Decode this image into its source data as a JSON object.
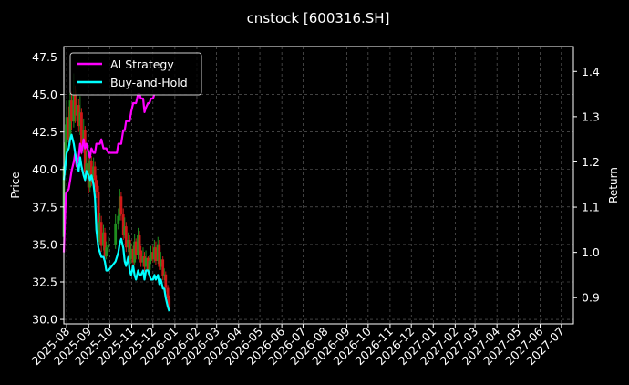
{
  "chart_data": {
    "type": "line",
    "title": "cnstock [600316.SH]",
    "ylabel_left": "Price",
    "ylabel_right": "Return",
    "ylim_left": [
      29.7,
      48.2
    ],
    "ylim_right": [
      0.842,
      1.455
    ],
    "xlim": [
      "2025-07-28",
      "2027-07-18"
    ],
    "grid": true,
    "legend_position": "top-left",
    "left_yticks": [
      "30.0",
      "32.5",
      "35.0",
      "37.5",
      "40.0",
      "42.5",
      "45.0",
      "47.5"
    ],
    "right_yticks": [
      "0.9",
      "1.0",
      "1.1",
      "1.2",
      "1.3",
      "1.4"
    ],
    "xticks": [
      "2025-08",
      "2025-09",
      "2025-10",
      "2025-11",
      "2025-12",
      "2026-01",
      "2026-02",
      "2026-03",
      "2026-04",
      "2026-05",
      "2026-06",
      "2026-07",
      "2026-08",
      "2026-09",
      "2026-10",
      "2026-11",
      "2026-12",
      "2027-01",
      "2027-02",
      "2027-03",
      "2027-04",
      "2027-05",
      "2027-06",
      "2027-07"
    ],
    "price": {
      "dates": [
        "2025-07-28",
        "2025-07-30",
        "2025-08-01",
        "2025-08-04",
        "2025-08-06",
        "2025-08-08",
        "2025-08-11",
        "2025-08-13",
        "2025-08-15",
        "2025-08-18",
        "2025-08-20",
        "2025-08-22",
        "2025-08-25",
        "2025-08-27",
        "2025-08-29",
        "2025-09-01",
        "2025-09-03",
        "2025-09-05",
        "2025-09-08",
        "2025-09-10",
        "2025-09-12",
        "2025-09-15",
        "2025-09-17",
        "2025-09-19",
        "2025-09-22",
        "2025-09-24",
        "2025-09-26",
        "2025-09-29",
        "2025-10-09",
        "2025-10-13",
        "2025-10-15",
        "2025-10-17",
        "2025-10-20",
        "2025-10-22",
        "2025-10-24",
        "2025-10-27",
        "2025-10-29",
        "2025-10-31",
        "2025-11-03",
        "2025-11-05",
        "2025-11-07",
        "2025-11-10",
        "2025-11-12",
        "2025-11-14",
        "2025-11-17",
        "2025-11-19",
        "2025-11-21",
        "2025-11-24",
        "2025-11-26",
        "2025-11-28",
        "2025-12-01",
        "2025-12-03",
        "2025-12-05",
        "2025-12-08",
        "2025-12-10",
        "2025-12-12",
        "2025-12-15",
        "2025-12-17",
        "2025-12-19",
        "2025-12-22",
        "2025-12-24"
      ],
      "open": [
        35.5,
        40.2,
        41.8,
        43.5,
        42.0,
        44.6,
        43.2,
        45.0,
        43.6,
        44.3,
        42.9,
        43.8,
        41.5,
        42.6,
        39.8,
        40.4,
        38.8,
        40.6,
        39.5,
        40.2,
        39.3,
        38.5,
        35.2,
        36.5,
        34.9,
        35.8,
        34.2,
        34.8,
        35.0,
        36.4,
        36.9,
        38.2,
        37.0,
        35.6,
        36.2,
        34.8,
        35.3,
        34.0,
        34.7,
        33.8,
        35.2,
        34.3,
        35.6,
        34.6,
        33.8,
        34.2,
        33.5,
        34.1,
        33.3,
        33.9,
        34.5,
        34.0,
        34.8,
        33.9,
        35.0,
        33.5,
        34.0,
        32.9,
        33.0,
        32.1,
        31.4
      ],
      "close": [
        40.2,
        41.8,
        43.5,
        42.0,
        44.6,
        43.2,
        45.0,
        43.6,
        44.3,
        42.9,
        43.8,
        41.5,
        42.6,
        39.8,
        40.4,
        38.8,
        40.6,
        39.5,
        40.2,
        39.3,
        38.5,
        35.2,
        36.5,
        34.9,
        35.8,
        34.2,
        34.8,
        35.0,
        36.4,
        36.9,
        38.2,
        37.0,
        35.6,
        36.2,
        34.8,
        35.3,
        34.0,
        34.7,
        33.8,
        35.2,
        34.3,
        35.6,
        34.6,
        33.8,
        34.2,
        33.5,
        34.1,
        33.3,
        33.9,
        34.5,
        34.0,
        34.8,
        33.9,
        35.0,
        33.5,
        34.0,
        32.9,
        33.0,
        32.1,
        31.4,
        30.8
      ],
      "high": [
        41.0,
        43.0,
        44.6,
        44.2,
        45.8,
        45.2,
        46.4,
        45.6,
        45.3,
        44.7,
        44.9,
        44.1,
        43.4,
        42.9,
        41.2,
        40.9,
        41.3,
        40.9,
        40.8,
        40.5,
        39.6,
        38.9,
        37.1,
        36.9,
        36.3,
        36.1,
        35.2,
        35.5,
        37.0,
        37.4,
        38.7,
        38.5,
        37.4,
        36.8,
        36.5,
        35.8,
        35.6,
        35.1,
        34.9,
        35.7,
        35.4,
        36.1,
        35.9,
        34.9,
        34.8,
        34.5,
        34.6,
        34.2,
        34.3,
        34.9,
        34.9,
        35.3,
        35.2,
        35.5,
        35.3,
        34.5,
        34.2,
        33.4,
        33.2,
        32.3,
        31.6
      ],
      "low": [
        35.2,
        39.6,
        41.1,
        41.5,
        41.6,
        42.6,
        42.8,
        43.1,
        43.2,
        42.5,
        42.3,
        41.0,
        41.1,
        39.2,
        39.4,
        38.4,
        38.5,
        38.9,
        39.1,
        38.8,
        38.1,
        34.9,
        35.0,
        34.5,
        34.6,
        34.0,
        34.0,
        34.5,
        34.7,
        36.0,
        36.6,
        36.6,
        35.3,
        35.4,
        34.5,
        34.5,
        33.8,
        33.7,
        33.5,
        33.6,
        34.0,
        34.0,
        34.3,
        33.5,
        33.5,
        33.2,
        33.3,
        33.0,
        33.1,
        33.7,
        33.8,
        33.8,
        33.6,
        33.7,
        33.3,
        33.3,
        32.6,
        32.6,
        31.8,
        31.1,
        30.6
      ]
    },
    "series": [
      {
        "name": "AI Strategy",
        "color": "#ff00ff",
        "dates": [
          "2025-07-28",
          "2025-07-31",
          "2025-08-04",
          "2025-08-06",
          "2025-08-08",
          "2025-08-11",
          "2025-08-13",
          "2025-08-15",
          "2025-08-18",
          "2025-08-20",
          "2025-08-22",
          "2025-08-25",
          "2025-08-27",
          "2025-08-29",
          "2025-09-01",
          "2025-09-03",
          "2025-09-05",
          "2025-09-08",
          "2025-09-10",
          "2025-09-12",
          "2025-09-15",
          "2025-09-17",
          "2025-09-19",
          "2025-09-22",
          "2025-09-24",
          "2025-09-26",
          "2025-09-29",
          "2025-10-09",
          "2025-10-11",
          "2025-10-13",
          "2025-10-15",
          "2025-10-17",
          "2025-10-20",
          "2025-10-22",
          "2025-10-24",
          "2025-10-27",
          "2025-10-29",
          "2025-10-31",
          "2025-11-03",
          "2025-11-05",
          "2025-11-07",
          "2025-11-10",
          "2025-11-12",
          "2025-11-14",
          "2025-11-17",
          "2025-11-19",
          "2025-11-21",
          "2025-11-24",
          "2025-11-26",
          "2025-11-28",
          "2025-12-01",
          "2025-12-03"
        ],
        "values": [
          1.0,
          1.13,
          1.14,
          1.16,
          1.18,
          1.2,
          1.22,
          1.19,
          1.21,
          1.24,
          1.22,
          1.25,
          1.23,
          1.24,
          1.22,
          1.21,
          1.23,
          1.22,
          1.22,
          1.24,
          1.24,
          1.24,
          1.25,
          1.23,
          1.23,
          1.23,
          1.22,
          1.22,
          1.22,
          1.24,
          1.24,
          1.24,
          1.27,
          1.27,
          1.29,
          1.29,
          1.29,
          1.31,
          1.33,
          1.33,
          1.33,
          1.35,
          1.35,
          1.34,
          1.34,
          1.31,
          1.32,
          1.33,
          1.33,
          1.34,
          1.34,
          1.35
        ]
      },
      {
        "name": "Buy-and-Hold",
        "color": "#00ffff",
        "dates": [
          "2025-07-28",
          "2025-07-30",
          "2025-08-01",
          "2025-08-04",
          "2025-08-06",
          "2025-08-08",
          "2025-08-11",
          "2025-08-13",
          "2025-08-15",
          "2025-08-18",
          "2025-08-20",
          "2025-08-22",
          "2025-08-25",
          "2025-08-27",
          "2025-08-29",
          "2025-09-01",
          "2025-09-03",
          "2025-09-05",
          "2025-09-08",
          "2025-09-10",
          "2025-09-12",
          "2025-09-15",
          "2025-09-17",
          "2025-09-19",
          "2025-09-22",
          "2025-09-24",
          "2025-09-26",
          "2025-09-29",
          "2025-10-09",
          "2025-10-13",
          "2025-10-15",
          "2025-10-17",
          "2025-10-20",
          "2025-10-22",
          "2025-10-24",
          "2025-10-27",
          "2025-10-29",
          "2025-10-31",
          "2025-11-03",
          "2025-11-05",
          "2025-11-07",
          "2025-11-10",
          "2025-11-12",
          "2025-11-14",
          "2025-11-17",
          "2025-11-19",
          "2025-11-21",
          "2025-11-24",
          "2025-11-26",
          "2025-11-28",
          "2025-12-01",
          "2025-12-03",
          "2025-12-05",
          "2025-12-08",
          "2025-12-10",
          "2025-12-12",
          "2025-12-15",
          "2025-12-17",
          "2025-12-19",
          "2025-12-22",
          "2025-12-24"
        ],
        "values": [
          1.16,
          1.19,
          1.22,
          1.23,
          1.25,
          1.26,
          1.24,
          1.22,
          1.2,
          1.18,
          1.21,
          1.19,
          1.17,
          1.16,
          1.18,
          1.17,
          1.16,
          1.17,
          1.15,
          1.12,
          1.05,
          1.01,
          1.0,
          0.99,
          0.99,
          0.98,
          0.96,
          0.96,
          0.98,
          1.0,
          1.02,
          1.03,
          1.01,
          0.98,
          0.97,
          0.99,
          0.96,
          0.95,
          0.97,
          0.95,
          0.94,
          0.96,
          0.95,
          0.95,
          0.96,
          0.94,
          0.96,
          0.96,
          0.95,
          0.94,
          0.94,
          0.95,
          0.94,
          0.95,
          0.93,
          0.94,
          0.92,
          0.92,
          0.9,
          0.88,
          0.87
        ]
      }
    ]
  }
}
